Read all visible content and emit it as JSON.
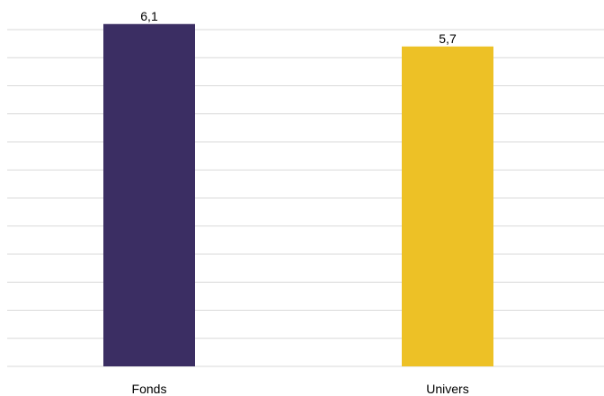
{
  "chart_data": {
    "type": "bar",
    "categories": [
      "Fonds",
      "Univers"
    ],
    "values": [
      6.1,
      5.7
    ],
    "value_labels": [
      "6,1",
      "5,7"
    ],
    "colors": [
      "#3b2e63",
      "#edc126"
    ],
    "title": "",
    "xlabel": "",
    "ylabel": "",
    "ylim": [
      0,
      6.0
    ],
    "grid": true,
    "gridline_count": 12,
    "legend": "none"
  }
}
